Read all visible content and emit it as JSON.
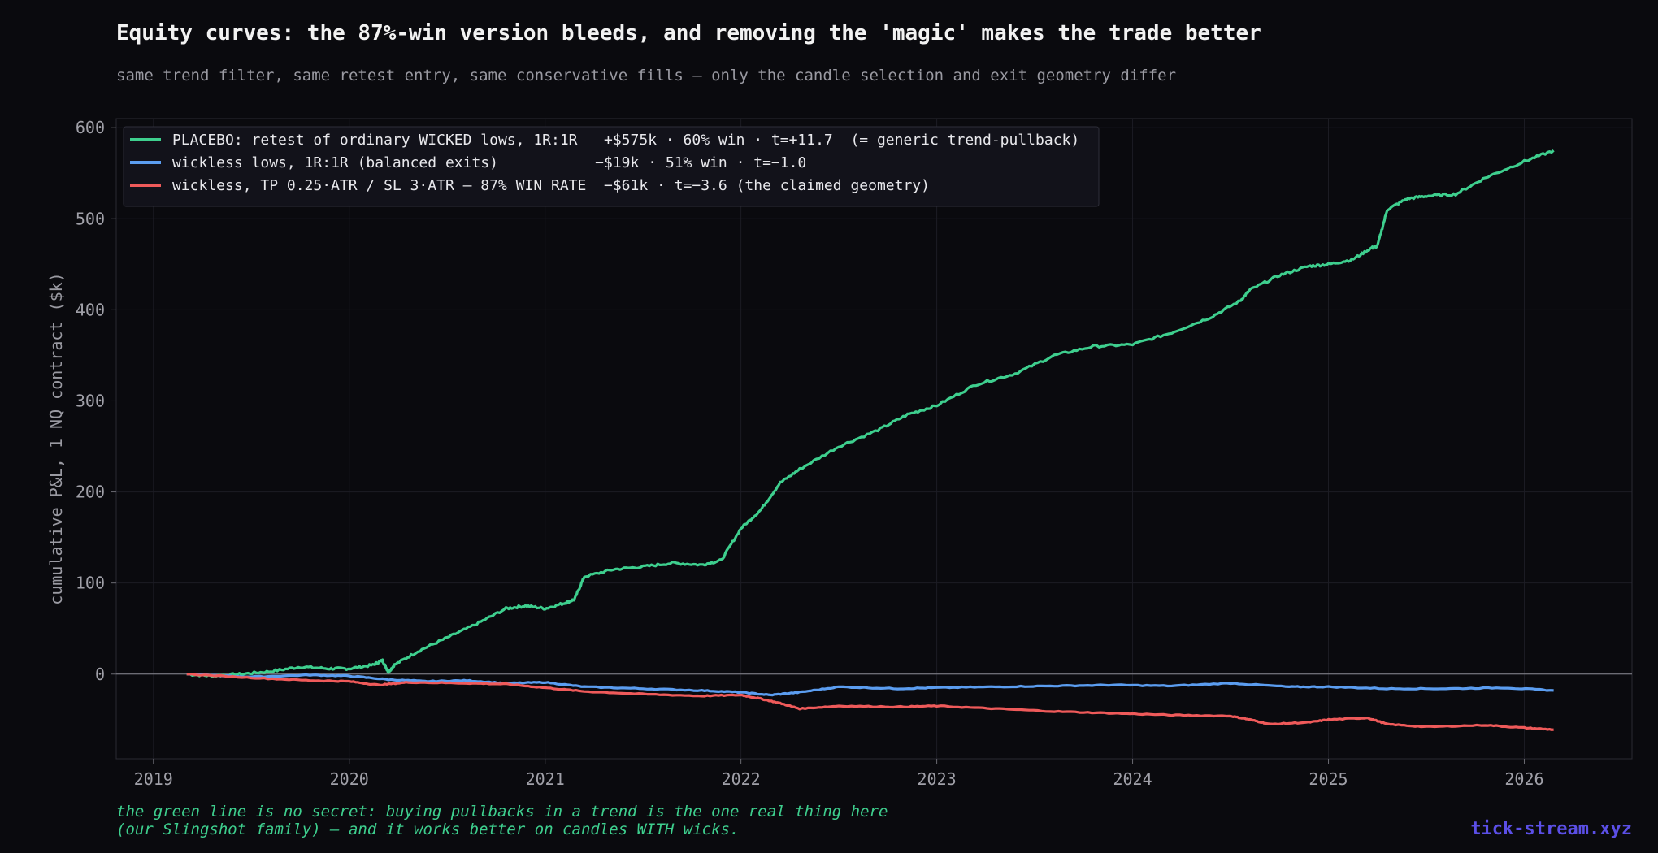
{
  "header": {
    "title": "Equity curves: the 87%-win version bleeds, and removing the 'magic' makes the trade better",
    "subtitle": "same trend filter, same retest entry, same conservative fills — only the candle selection and exit geometry differ"
  },
  "footnote": {
    "line1": "the green line is no secret: buying pullbacks in a trend is the one real thing here",
    "line2": "(our Slingshot family) — and it works better on candles WITH wicks."
  },
  "brand": "tick-stream.xyz",
  "chart_data": {
    "type": "line",
    "title": "Equity curves: the 87%-win version bleeds, and removing the 'magic' makes the trade better",
    "xlabel": "",
    "ylabel": "cumulative P&L, 1 NQ contract ($k)",
    "xlim": [
      2018.81,
      2026.55
    ],
    "ylim": [
      -93,
      610
    ],
    "x_ticks": [
      2019,
      2020,
      2021,
      2022,
      2023,
      2024,
      2025,
      2026
    ],
    "y_ticks": [
      0,
      100,
      200,
      300,
      400,
      500,
      600
    ],
    "grid": true,
    "legend": "top-left",
    "series": [
      {
        "name": "PLACEBO: retest of ordinary WICKED lows, 1R:1R   +$575k · 60% win · t=+11.7  (= generic trend-pullback)",
        "color": "#3ecf8e",
        "x": [
          2019.17,
          2019.3,
          2019.45,
          2019.6,
          2019.75,
          2019.9,
          2020.0,
          2020.12,
          2020.17,
          2020.2,
          2020.23,
          2020.35,
          2020.5,
          2020.65,
          2020.8,
          2020.9,
          2021.0,
          2021.1,
          2021.15,
          2021.2,
          2021.35,
          2021.5,
          2021.65,
          2021.8,
          2021.9,
          2022.0,
          2022.1,
          2022.2,
          2022.3,
          2022.5,
          2022.7,
          2022.85,
          2023.0,
          2023.2,
          2023.4,
          2023.6,
          2023.8,
          2024.0,
          2024.2,
          2024.4,
          2024.55,
          2024.6,
          2024.75,
          2024.9,
          2025.0,
          2025.12,
          2025.22,
          2025.25,
          2025.3,
          2025.4,
          2025.5,
          2025.65,
          2025.8,
          2026.0,
          2026.15
        ],
        "y": [
          0,
          -2,
          0,
          3,
          8,
          6,
          6,
          10,
          15,
          2,
          10,
          25,
          40,
          55,
          72,
          75,
          72,
          78,
          82,
          107,
          115,
          118,
          122,
          120,
          125,
          160,
          180,
          210,
          225,
          250,
          268,
          285,
          295,
          318,
          330,
          350,
          360,
          362,
          375,
          392,
          410,
          422,
          438,
          448,
          450,
          455,
          468,
          470,
          510,
          522,
          525,
          527,
          545,
          563,
          575
        ]
      },
      {
        "name": "wickless lows, 1R:1R (balanced exits)           −$19k · 51% win · t=−1.0",
        "color": "#5b9df0",
        "x": [
          2019.17,
          2019.5,
          2019.8,
          2020.0,
          2020.2,
          2020.4,
          2020.6,
          2020.8,
          2021.0,
          2021.2,
          2021.5,
          2021.8,
          2022.0,
          2022.15,
          2022.3,
          2022.5,
          2022.8,
          2023.0,
          2023.3,
          2023.6,
          2023.9,
          2024.2,
          2024.5,
          2024.8,
          2025.0,
          2025.3,
          2025.6,
          2025.9,
          2026.15
        ],
        "y": [
          0,
          -3,
          -1,
          -2,
          -6,
          -8,
          -7,
          -10,
          -9,
          -14,
          -16,
          -18,
          -20,
          -23,
          -20,
          -14,
          -16,
          -15,
          -14,
          -13,
          -12,
          -13,
          -10,
          -14,
          -14,
          -16,
          -16,
          -15,
          -18
        ]
      },
      {
        "name": "wickless, TP 0.25·ATR / SL 3·ATR — 87% WIN RATE  −$61k · t=−3.6 (the claimed geometry)",
        "color": "#ef5a5a",
        "x": [
          2019.17,
          2019.5,
          2019.8,
          2020.0,
          2020.15,
          2020.3,
          2020.6,
          2020.8,
          2021.0,
          2021.2,
          2021.5,
          2021.8,
          2022.0,
          2022.1,
          2022.2,
          2022.3,
          2022.5,
          2022.8,
          2023.0,
          2023.3,
          2023.6,
          2023.9,
          2024.2,
          2024.5,
          2024.6,
          2024.7,
          2024.9,
          2025.0,
          2025.2,
          2025.3,
          2025.5,
          2025.8,
          2026.0,
          2026.15
        ],
        "y": [
          0,
          -4,
          -7,
          -8,
          -12,
          -9,
          -10,
          -11,
          -15,
          -19,
          -22,
          -24,
          -23,
          -27,
          -32,
          -38,
          -35,
          -36,
          -35,
          -38,
          -41,
          -43,
          -45,
          -46,
          -50,
          -55,
          -53,
          -50,
          -48,
          -55,
          -58,
          -56,
          -59,
          -61
        ]
      }
    ]
  }
}
